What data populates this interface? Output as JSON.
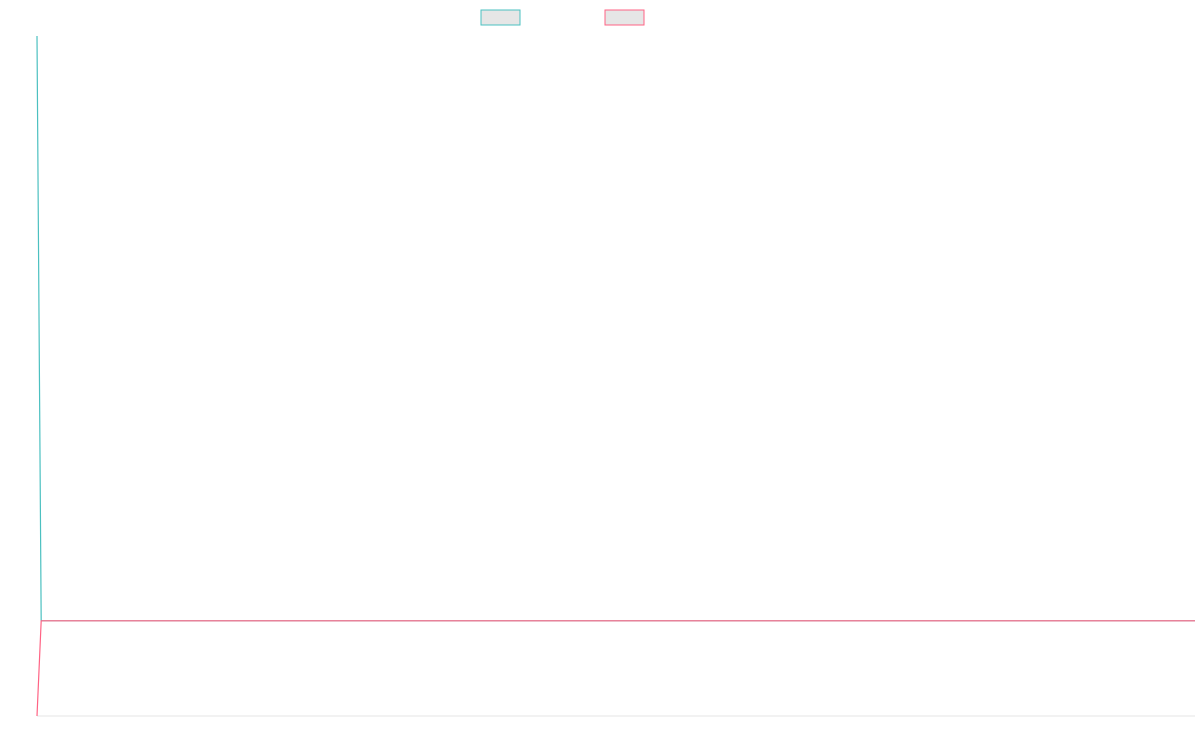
{
  "chart_data": {
    "type": "line",
    "title": "",
    "xlabel": "",
    "ylabel": "",
    "grid": false,
    "legend_placement": "top-center",
    "x": [
      0,
      1,
      2
    ],
    "xlim": [
      0,
      415
    ],
    "ylim": [
      0,
      1
    ],
    "series": [
      {
        "name": "",
        "color": "#4bc0c0",
        "legend_fill": "#e6e6e6",
        "values": [
          1.0,
          0.14,
          0.14
        ]
      },
      {
        "name": "",
        "color": "#ff6384",
        "legend_fill": "#e6e6e6",
        "values": [
          0.0,
          0.14,
          0.14
        ]
      }
    ],
    "axis_color": "#e6e6e6"
  }
}
